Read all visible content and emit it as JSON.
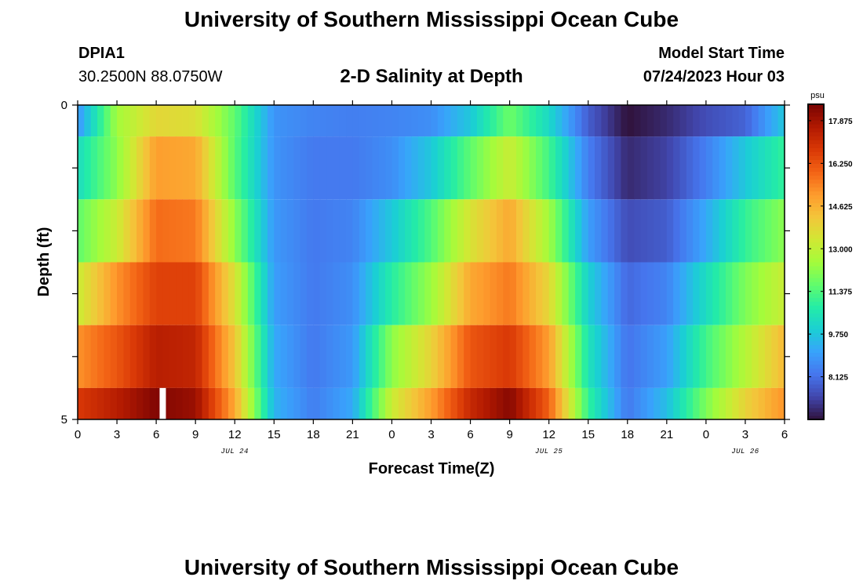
{
  "header": {
    "title": "University of Southern Mississippi Ocean Cube",
    "station_id": "DPIA1",
    "coordinates": "30.2500N  88.0750W",
    "plot_title": "2-D Salinity at Depth",
    "model_start_label": "Model Start Time",
    "model_start_value": "07/24/2023 Hour 03"
  },
  "footer": {
    "title": "University of Southern Mississippi Ocean Cube"
  },
  "chart_data": {
    "type": "heatmap",
    "title": "2-D Salinity at Depth",
    "xlabel": "Forecast Time(Z)",
    "ylabel": "Depth (ft)",
    "x_tick_labels": [
      "0",
      "3",
      "6",
      "9",
      "12",
      "15",
      "18",
      "21",
      "0",
      "3",
      "6",
      "9",
      "12",
      "15",
      "18",
      "21",
      "0",
      "3",
      "6"
    ],
    "x_range_hours": [
      0,
      54
    ],
    "date_labels": [
      {
        "hour": 12,
        "text": "JUL 24"
      },
      {
        "hour": 36,
        "text": "JUL 25"
      },
      {
        "hour": 51,
        "text": "JUL 26"
      }
    ],
    "y_tick_labels": [
      "0",
      "5"
    ],
    "y_range_ft": [
      0,
      5
    ],
    "colorbar": {
      "unit": "psu",
      "min": 6.5,
      "max": 18.5,
      "tick_values": [
        17.875,
        16.25,
        14.625,
        13.0,
        11.375,
        9.75,
        8.125
      ],
      "tick_labels": [
        "17.875",
        "16.250",
        "14.625",
        "13.000",
        "11.375",
        "9.750",
        "8.125"
      ],
      "colormap": [
        "#30123b",
        "#4145ab",
        "#4675ed",
        "#39a2fc",
        "#1bcfd4",
        "#24eca6",
        "#61fc6c",
        "#a4fc3b",
        "#d1e834",
        "#f3c63a",
        "#fe9b2d",
        "#f36315",
        "#d93806",
        "#b11901",
        "#7a0403"
      ]
    },
    "layer_top_depths_ft": [
      0,
      0.5,
      1.5,
      2.5,
      3.5,
      4.5
    ],
    "time_hours": [
      0,
      3,
      6,
      9,
      12,
      15,
      18,
      21,
      24,
      27,
      30,
      33,
      36,
      39,
      42,
      45,
      48,
      51,
      54
    ],
    "salinity_psu": [
      [
        8.8,
        12.5,
        13.8,
        13.6,
        11.6,
        8.8,
        8.5,
        8.4,
        8.5,
        8.7,
        9.8,
        11.8,
        10.2,
        7.8,
        6.5,
        6.9,
        7.5,
        7.9,
        9.8
      ],
      [
        10.3,
        12.2,
        15.0,
        14.8,
        11.5,
        8.8,
        8.3,
        8.3,
        8.7,
        9.8,
        11.6,
        13.2,
        11.2,
        8.4,
        6.9,
        7.3,
        8.4,
        9.8,
        11.0
      ],
      [
        11.6,
        13.2,
        15.8,
        15.6,
        12.2,
        8.9,
        8.3,
        8.5,
        9.8,
        11.4,
        13.5,
        14.8,
        12.5,
        9.0,
        7.5,
        7.8,
        9.2,
        11.0,
        12.2
      ],
      [
        13.2,
        15.2,
        16.6,
        16.6,
        13.5,
        9.0,
        8.3,
        8.7,
        10.8,
        12.4,
        14.8,
        15.6,
        13.8,
        10.0,
        8.0,
        8.5,
        10.3,
        12.0,
        13.2
      ],
      [
        15.2,
        16.2,
        17.5,
        17.3,
        14.2,
        9.2,
        8.3,
        8.9,
        12.2,
        13.9,
        16.2,
        16.8,
        15.0,
        10.5,
        8.2,
        9.0,
        11.2,
        12.8,
        14.5
      ],
      [
        16.8,
        17.5,
        18.4,
        18.0,
        14.8,
        9.4,
        8.4,
        9.2,
        13.2,
        15.0,
        17.2,
        18.3,
        16.0,
        11.0,
        8.3,
        9.6,
        12.0,
        13.9,
        15.2
      ]
    ],
    "missing_data": [
      {
        "hour": 6.5,
        "layer": 5
      }
    ]
  }
}
